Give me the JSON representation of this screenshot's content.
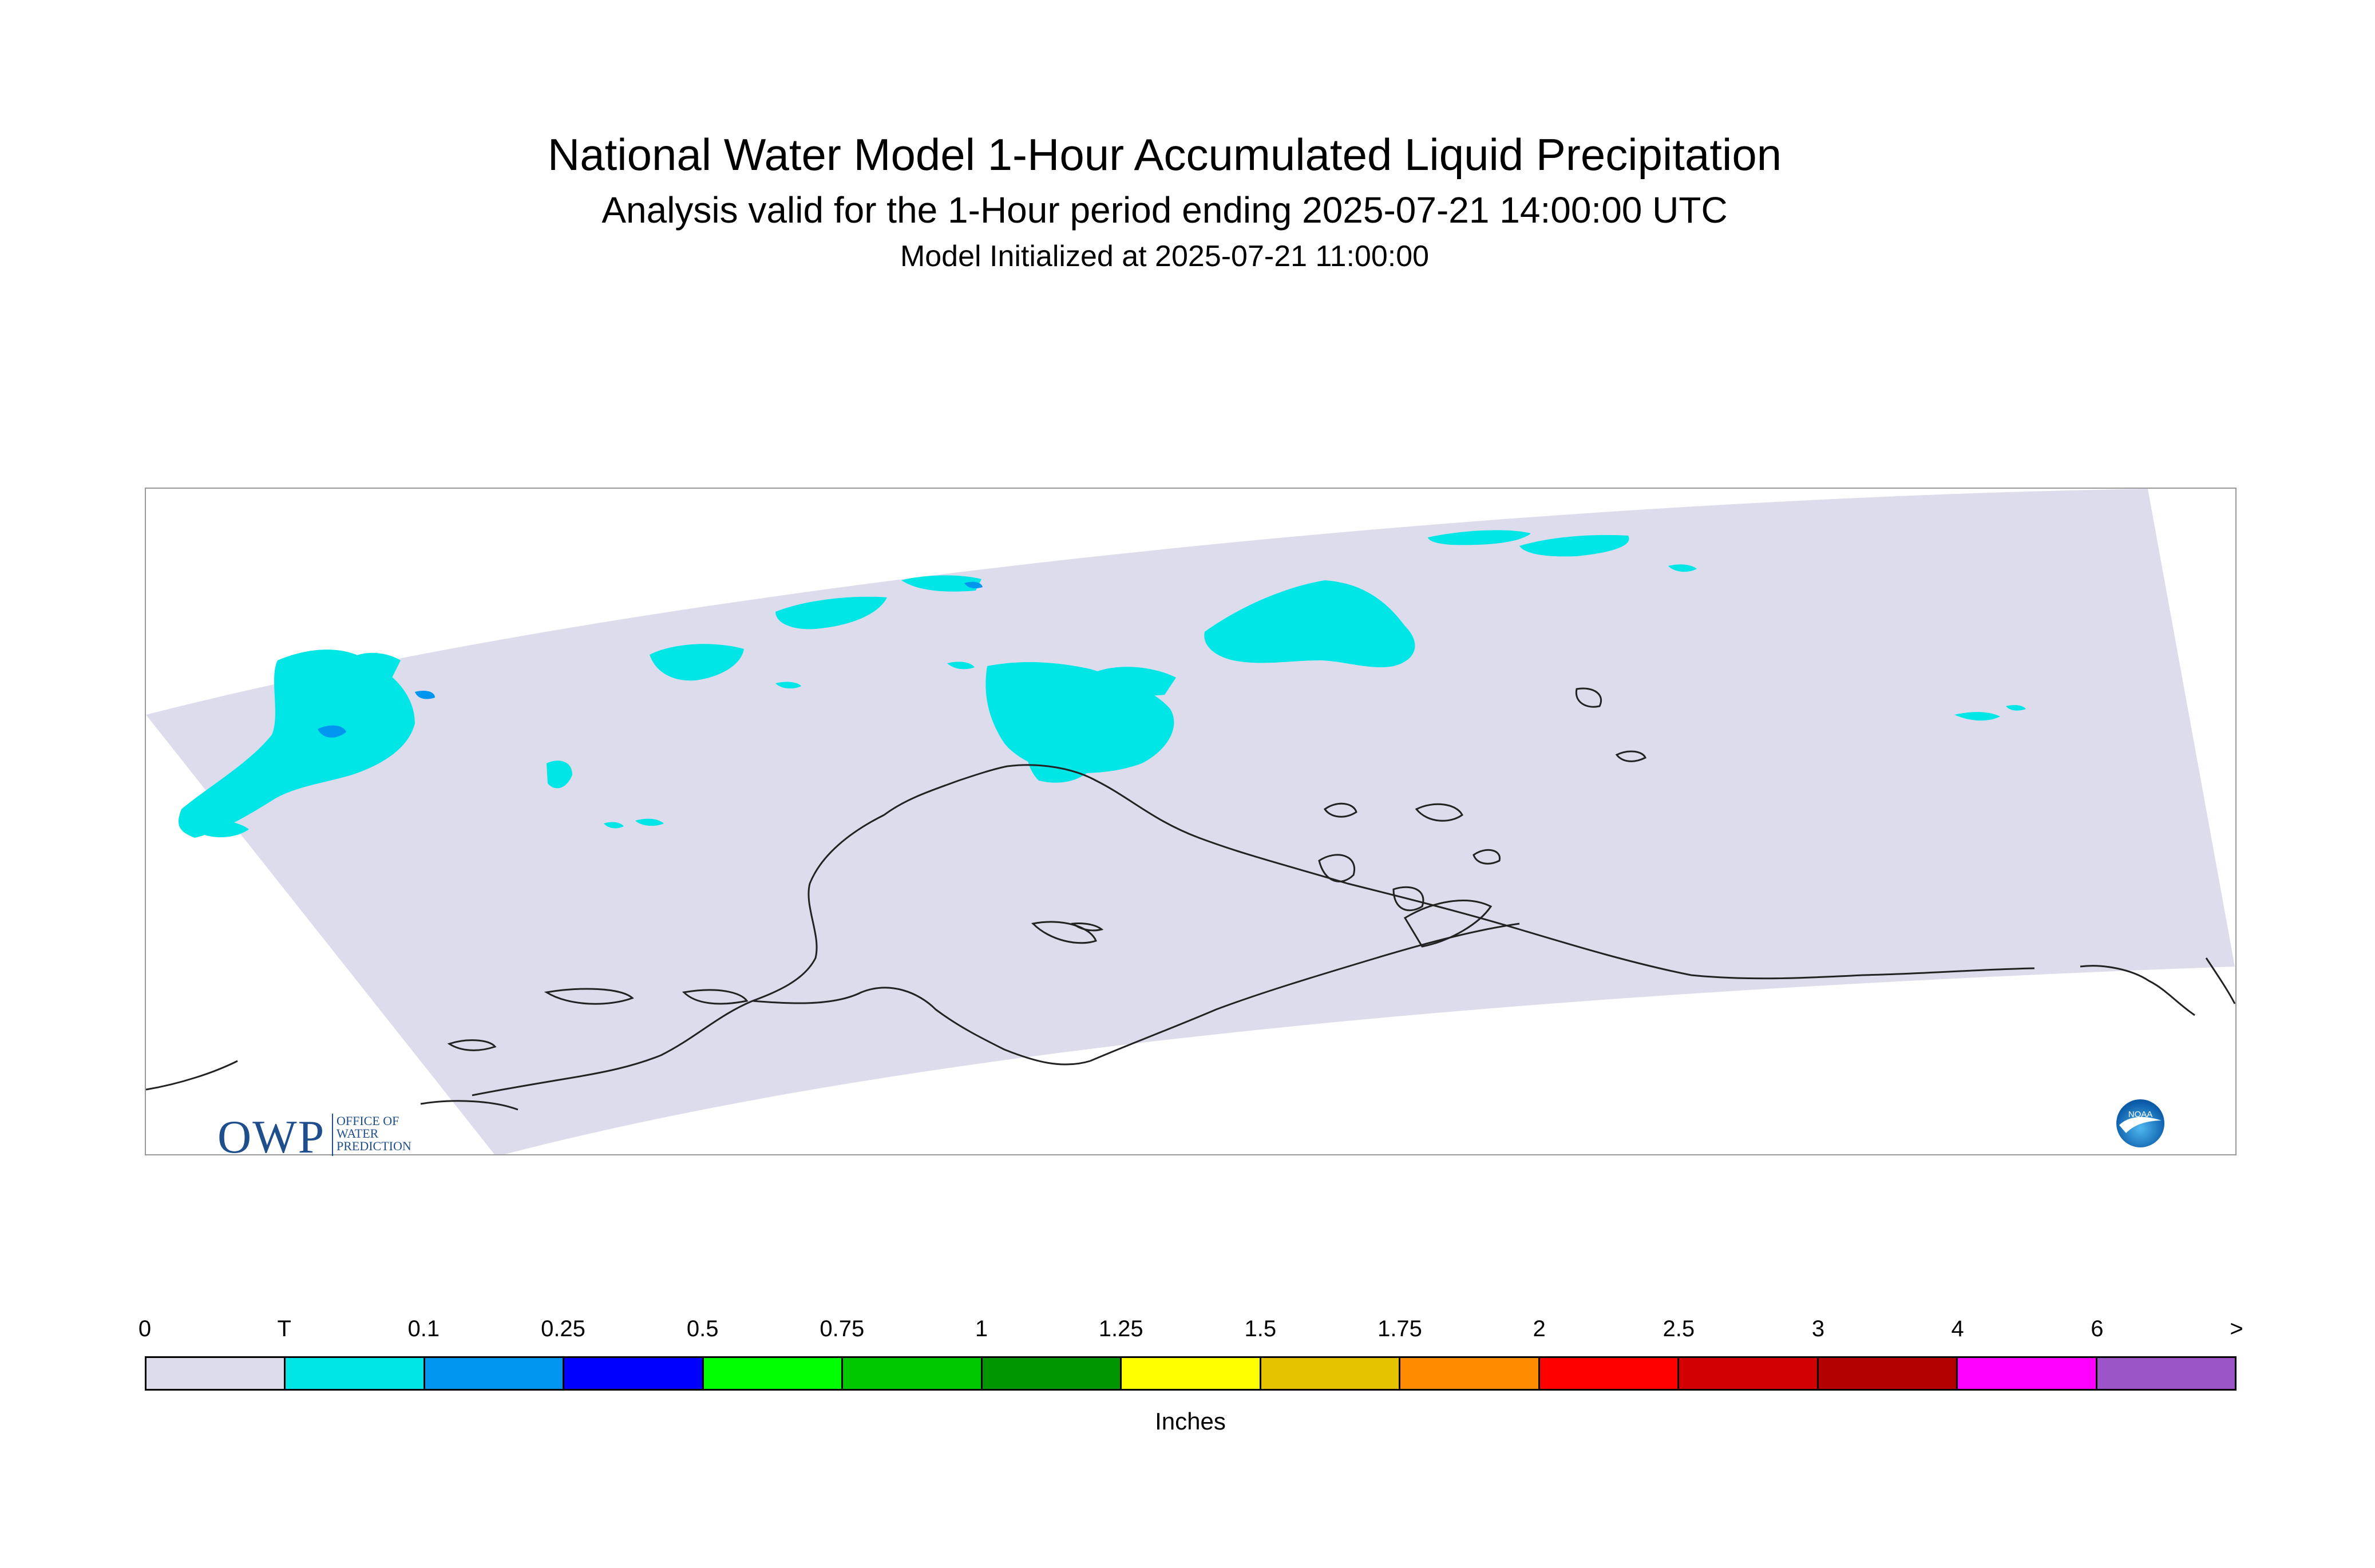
{
  "header": {
    "title": "National Water Model 1-Hour Accumulated Liquid Precipitation",
    "subtitle": "Analysis valid for the 1-Hour period ending 2025-07-21 14:00:00 UTC",
    "init_line": "Model Initialized at 2025-07-21 11:00:00"
  },
  "logos": {
    "owp": {
      "letters": "OWP",
      "line1": "OFFICE OF",
      "line2": "WATER",
      "line3": "PREDICTION"
    },
    "noaa": {
      "text": "NOAA"
    }
  },
  "map": {
    "domain_fill": "#dcdcec",
    "coast_color": "#222222",
    "trace_color": "#00e6e6",
    "light_blue": "#0096f0"
  },
  "legend": {
    "labels": [
      "0",
      "T",
      "0.1",
      "0.25",
      "0.5",
      "0.75",
      "1",
      "1.25",
      "1.5",
      "1.75",
      "2",
      "2.5",
      "3",
      "4",
      "6",
      ">"
    ],
    "colors": [
      "#dcdcec",
      "#00e6e6",
      "#0096f0",
      "#0000ff",
      "#00ff00",
      "#00c800",
      "#009600",
      "#ffff00",
      "#e6c300",
      "#ff8c00",
      "#ff0000",
      "#d20000",
      "#b40000",
      "#ff00ff",
      "#9b55c8"
    ],
    "unit": "Inches"
  }
}
